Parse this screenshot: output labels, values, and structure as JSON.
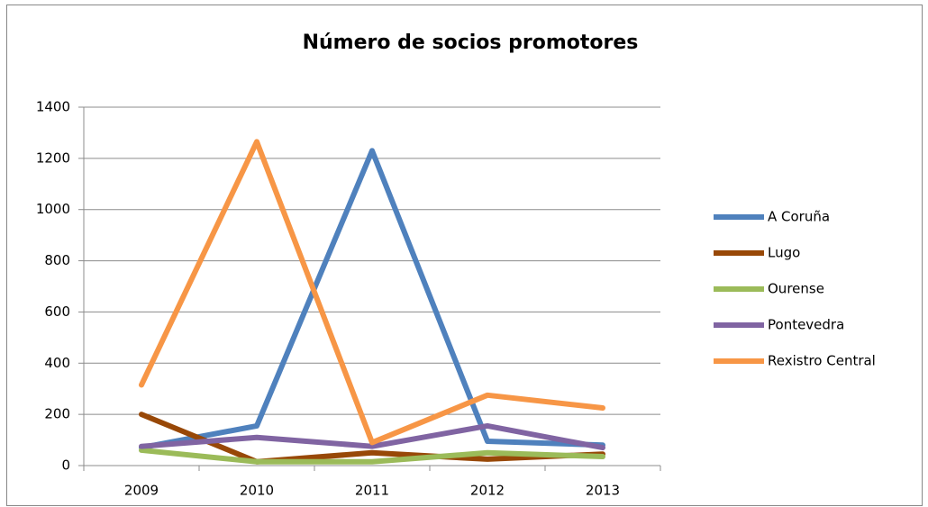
{
  "chart_data": {
    "type": "line",
    "title": "Número de socios promotores",
    "categories": [
      "2009",
      "2010",
      "2011",
      "2012",
      "2013"
    ],
    "series": [
      {
        "name": "A Coruña",
        "color": "#4f81bd",
        "values": [
          70,
          155,
          1230,
          95,
          80
        ]
      },
      {
        "name": "Lugo",
        "color": "#984807",
        "values": [
          200,
          15,
          50,
          25,
          45
        ]
      },
      {
        "name": "Ourense",
        "color": "#9bbb59",
        "values": [
          60,
          15,
          15,
          50,
          35
        ]
      },
      {
        "name": "Pontevedra",
        "color": "#8064a2",
        "values": [
          75,
          110,
          75,
          155,
          70
        ]
      },
      {
        "name": "Rexistro Central",
        "color": "#f79646",
        "values": [
          315,
          1265,
          90,
          275,
          225
        ]
      }
    ],
    "ylim": [
      0,
      1400
    ],
    "yticks": [
      0,
      200,
      400,
      600,
      800,
      1000,
      1200,
      1400
    ],
    "grid": true,
    "legend": "right"
  }
}
